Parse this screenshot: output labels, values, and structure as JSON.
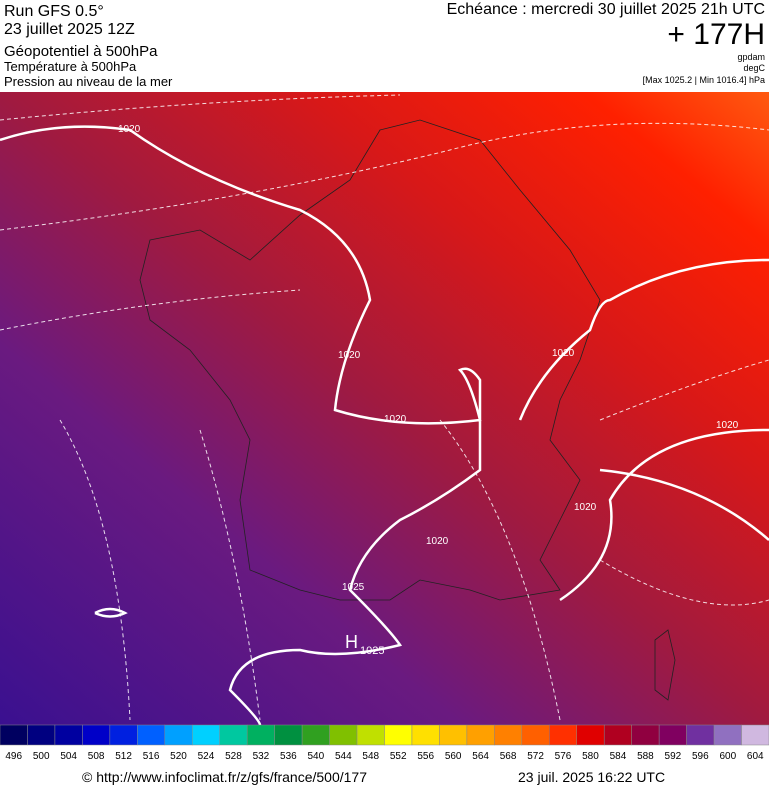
{
  "header": {
    "run": "Run GFS 0.5°",
    "run_date": "23 juillet 2025 12Z",
    "layer1": "Géopotentiel à 500hPa",
    "layer2": "Température à 500hPa",
    "layer3": "Pression au niveau de la mer",
    "valid_time": "Echéance : mercredi 30 juillet 2025 21h UTC",
    "lead": "+ 177H",
    "unit1": "gpdam",
    "unit2": "degC",
    "extremes": "[Max 1025.2 | Min 1016.4] hPa"
  },
  "map_labels": {
    "isobars": [
      "1020",
      "1020",
      "1020",
      "1020",
      "1020",
      "1020",
      "1020",
      "1025"
    ],
    "high": "H",
    "high_value": "1025"
  },
  "legend": {
    "values": [
      496,
      500,
      504,
      508,
      512,
      516,
      520,
      524,
      528,
      532,
      536,
      540,
      544,
      548,
      552,
      556,
      560,
      564,
      568,
      572,
      576,
      580,
      584,
      588,
      592,
      596,
      600,
      604
    ],
    "colors": [
      "#000060",
      "#000080",
      "#0000a0",
      "#0000c8",
      "#0020e0",
      "#0060ff",
      "#00a0ff",
      "#00d0ff",
      "#00c8a0",
      "#00b060",
      "#009040",
      "#30a020",
      "#80c000",
      "#c0e000",
      "#ffff00",
      "#ffe000",
      "#ffc000",
      "#ffa000",
      "#ff8000",
      "#ff6000",
      "#ff3000",
      "#e00000",
      "#b00020",
      "#900040",
      "#800060",
      "#7030a0",
      "#9070c0",
      "#d0b8e0"
    ]
  },
  "footer": {
    "url": "© http://www.infoclimat.fr/z/gfs/france/500/177",
    "generated": "23 juil. 2025 16:22 UTC"
  }
}
